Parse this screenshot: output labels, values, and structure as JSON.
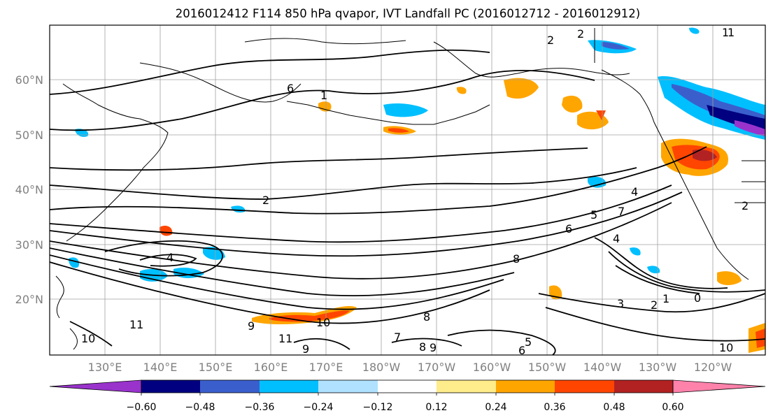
{
  "title": "2016012412 F114 850 hPa qvapor, IVT Landfall PC (2016012712 - 2016012912)",
  "longitude_labels": [
    "130°E",
    "140°E",
    "150°E",
    "160°E",
    "170°E",
    "180°W",
    "170°W",
    "160°W",
    "150°W",
    "140°W",
    "130°W",
    "120°W"
  ],
  "latitude_labels": [
    "60°N",
    "50°N",
    "40°N",
    "30°N",
    "20°N"
  ],
  "colorbar": {
    "tick_labels": [
      "−0.60",
      "−0.48",
      "−0.36",
      "−0.24",
      "−0.12",
      "0.12",
      "0.24",
      "0.36",
      "0.48",
      "0.60"
    ],
    "colors": [
      "#9933cc",
      "#000080",
      "#3a5fcd",
      "#00bfff",
      "#b0e2ff",
      "#ffffff",
      "#ffec8b",
      "#ffa500",
      "#ff4500",
      "#b22222",
      "#ff82ab"
    ]
  },
  "contour_labels": [
    "1",
    "2",
    "2",
    "6",
    "1",
    "2",
    "4",
    "4",
    "5",
    "6",
    "7",
    "8",
    "9",
    "10",
    "11",
    "11",
    "10",
    "9",
    "8",
    "7",
    "6",
    "5",
    "4",
    "3",
    "2",
    "1",
    "0",
    "1",
    "2",
    "8",
    "9",
    "10"
  ]
}
